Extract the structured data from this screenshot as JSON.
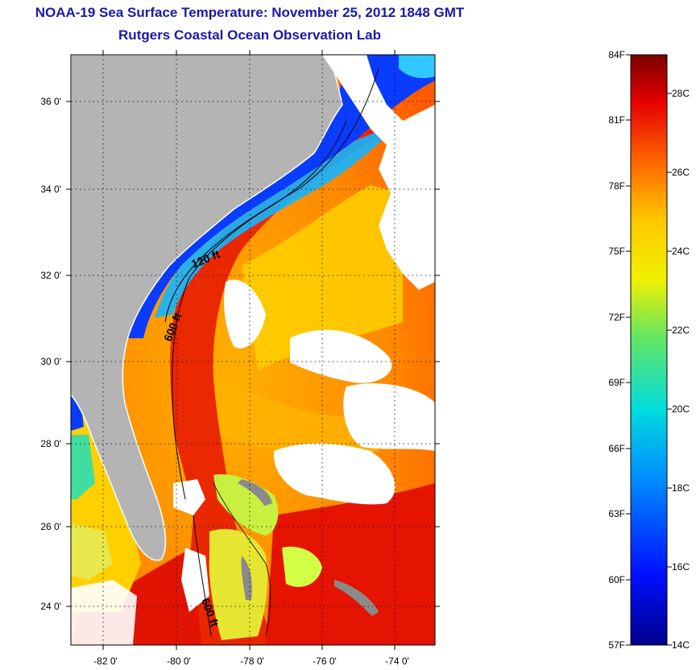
{
  "title": {
    "line1": "NOAA-19 Sea Surface Temperature:  November 25, 2012 1848 GMT",
    "line2": "Rutgers Coastal Ocean Observation Lab"
  },
  "map": {
    "lat_ticks": [
      "36 0'",
      "34 0'",
      "32 0'",
      "30 0'",
      "28 0'",
      "26 0'",
      "24 0'"
    ],
    "lon_ticks": [
      "-82 0'",
      "-80 0'",
      "-78 0'",
      "-76 0'",
      "-74 0'"
    ],
    "contour_labels": [
      "120 ft",
      "600 ft",
      "600 ft"
    ],
    "colors": {
      "land": "#b4b4b4",
      "cloud": "#ffffff",
      "frame": "#000000"
    }
  },
  "colorbar": {
    "fahrenheit": [
      "84F",
      "81F",
      "78F",
      "75F",
      "72F",
      "69F",
      "66F",
      "63F",
      "60F",
      "57F"
    ],
    "celsius": [
      "28C",
      "26C",
      "24C",
      "22C",
      "20C",
      "18C",
      "16C",
      "14C"
    ]
  }
}
